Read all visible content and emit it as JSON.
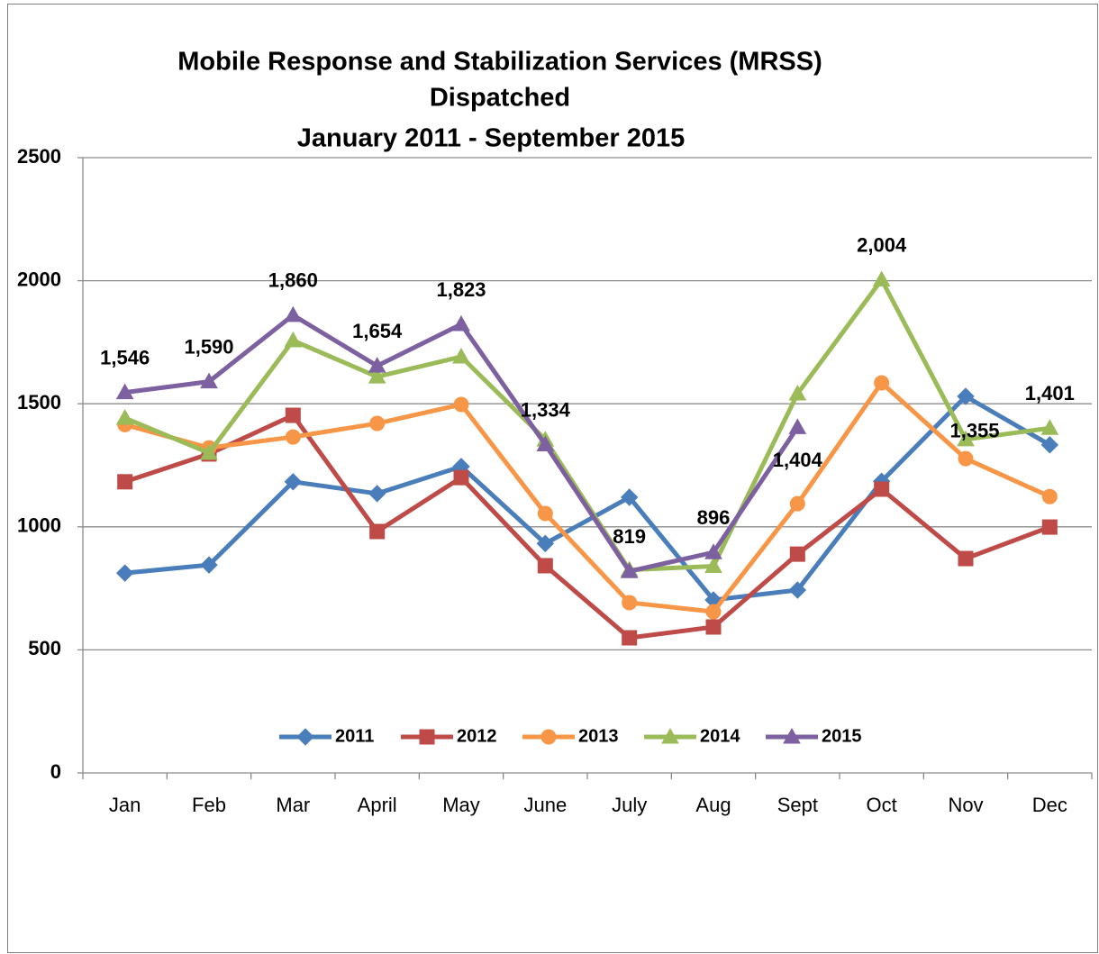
{
  "chart_data": {
    "type": "line",
    "title": [
      "Mobile Response and Stabilization Services (MRSS)",
      "Dispatched",
      "January 2011 - September 2015"
    ],
    "categories": [
      "Jan",
      "Feb",
      "Mar",
      "April",
      "May",
      "June",
      "July",
      "Aug",
      "Sept",
      "Oct",
      "Nov",
      "Dec"
    ],
    "ylim": [
      0,
      2500
    ],
    "yticks": [
      0,
      500,
      1000,
      1500,
      2000,
      2500
    ],
    "grid": true,
    "legend": "bottom",
    "series": [
      {
        "name": "2011",
        "color": "#4a7ebb",
        "marker": "diamond",
        "values": [
          812,
          845,
          1183,
          1135,
          1245,
          932,
          1120,
          703,
          743,
          1185,
          1530,
          1333
        ]
      },
      {
        "name": "2012",
        "color": "#be4b48",
        "marker": "square",
        "values": [
          1183,
          1296,
          1453,
          981,
          1200,
          842,
          549,
          593,
          889,
          1153,
          871,
          999
        ]
      },
      {
        "name": "2013",
        "color": "#f79646",
        "marker": "circle",
        "values": [
          1415,
          1321,
          1365,
          1420,
          1497,
          1054,
          692,
          655,
          1094,
          1585,
          1277,
          1123
        ]
      },
      {
        "name": "2014",
        "color": "#9bbb59",
        "marker": "triangle",
        "values": [
          1442,
          1300,
          1757,
          1610,
          1691,
          1354,
          825,
          840,
          1541,
          2004,
          1355,
          1401
        ],
        "value_labels": [
          null,
          null,
          null,
          null,
          null,
          null,
          null,
          null,
          null,
          "2,004",
          "1,355",
          "1,401"
        ]
      },
      {
        "name": "2015",
        "color": "#7d60a0",
        "marker": "triangle",
        "values": [
          1546,
          1590,
          1860,
          1654,
          1823,
          1334,
          819,
          896,
          1404,
          null,
          null,
          null
        ],
        "value_labels": [
          "1,546",
          "1,590",
          "1,860",
          "1,654",
          "1,823",
          "1,334",
          "819",
          "896",
          "1,404",
          null,
          null,
          null
        ]
      }
    ]
  }
}
